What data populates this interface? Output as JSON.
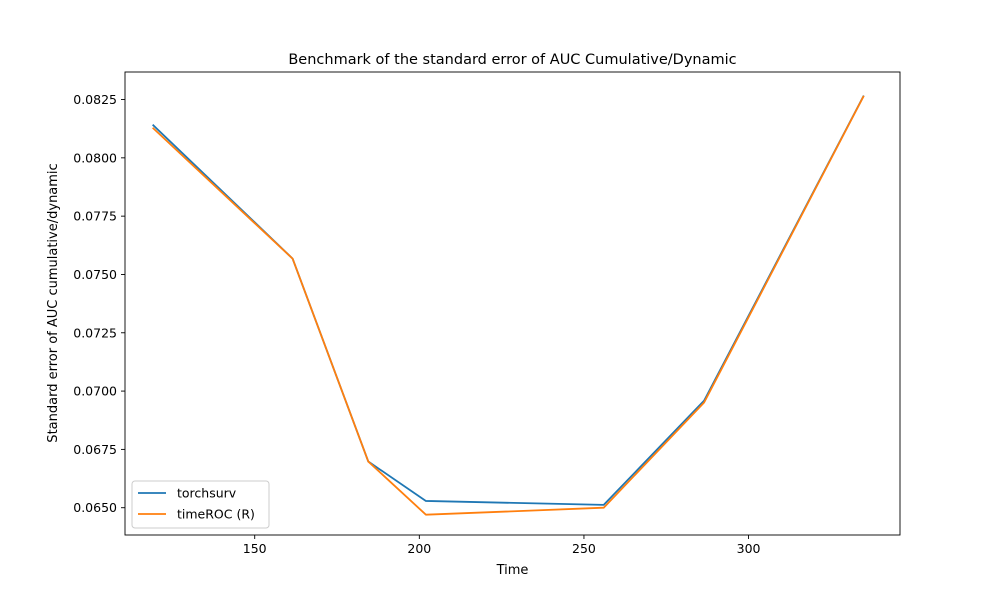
{
  "chart_data": {
    "type": "line",
    "title": "Benchmark of the standard error of AUC Cumulative/Dynamic",
    "xlabel": "Time",
    "ylabel": "Standard error of AUC cumulative/dynamic",
    "xlim": [
      110.6,
      346.0
    ],
    "ylim": [
      0.06383,
      0.08368
    ],
    "xticks": [
      150,
      200,
      250,
      300
    ],
    "xtick_labels": [
      "150",
      "200",
      "250",
      "300"
    ],
    "yticks": [
      0.065,
      0.0675,
      0.07,
      0.0725,
      0.075,
      0.0775,
      0.08,
      0.0825
    ],
    "ytick_labels": [
      "0.0650",
      "0.0675",
      "0.0700",
      "0.0725",
      "0.0750",
      "0.0775",
      "0.0800",
      "0.0825"
    ],
    "grid": false,
    "legend_position": "lower-left",
    "series": [
      {
        "name": "torchsurv",
        "color": "#1f77b4",
        "x": [
          119,
          161.5,
          184.5,
          202,
          256,
          286.5,
          335
        ],
        "y": [
          0.08142,
          0.07568,
          0.06698,
          0.06529,
          0.06512,
          0.06959,
          0.08267
        ]
      },
      {
        "name": "timeROC (R)",
        "color": "#ff7f0e",
        "x": [
          119,
          161.5,
          184.5,
          202,
          256,
          286.5,
          335
        ],
        "y": [
          0.08129,
          0.07568,
          0.06698,
          0.0647,
          0.065,
          0.06951,
          0.08266
        ]
      }
    ]
  }
}
